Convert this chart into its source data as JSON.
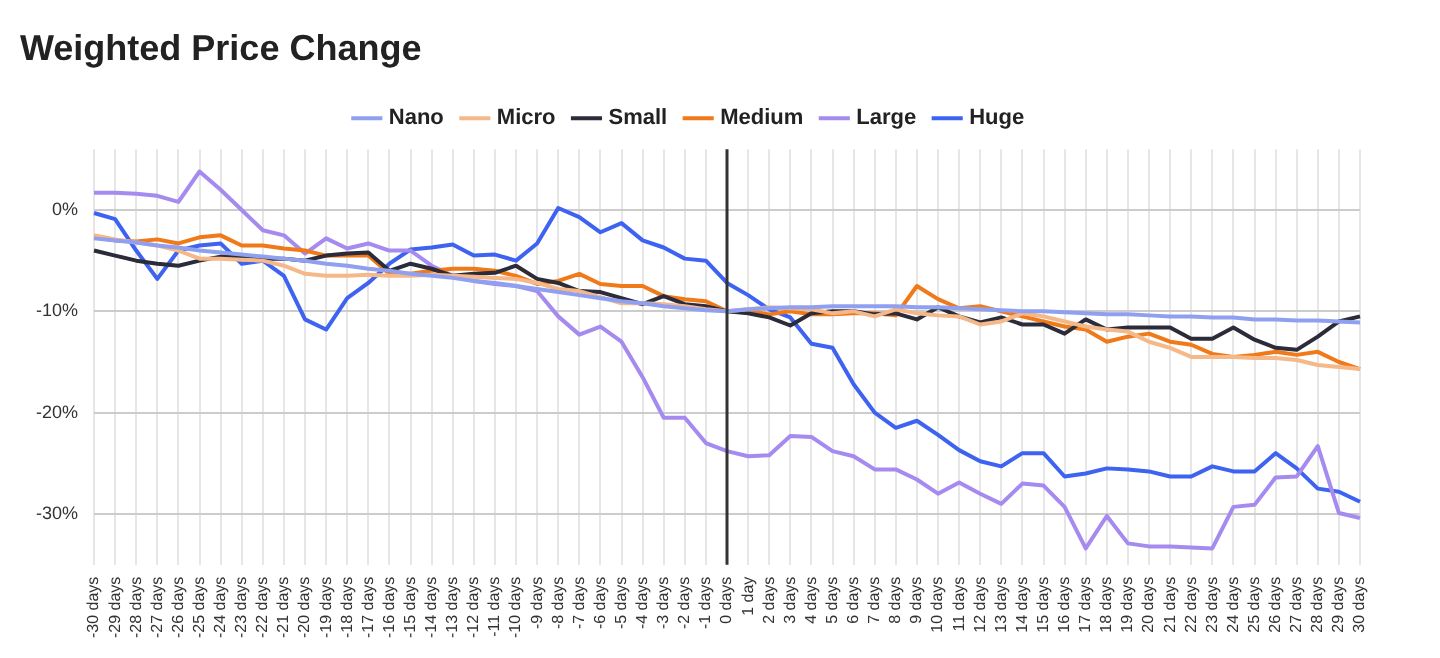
{
  "chart_data": {
    "type": "line",
    "title": "Weighted Price Change",
    "categories": [
      "-30 days",
      "-29 days",
      "-28 days",
      "-27 days",
      "-26 days",
      "-25 days",
      "-24 days",
      "-23 days",
      "-22 days",
      "-21 days",
      "-20 days",
      "-19 days",
      "-18 days",
      "-17 days",
      "-16 days",
      "-15 days",
      "-14 days",
      "-13 days",
      "-12 days",
      "-11 days",
      "-10 days",
      "-9 days",
      "-8 days",
      "-7 days",
      "-6 days",
      "-5 days",
      "-4 days",
      "-3 days",
      "-2 days",
      "-1 days",
      "0 days",
      "1 day",
      "2 days",
      "3 days",
      "4 days",
      "5 days",
      "6 days",
      "7 days",
      "8 days",
      "9 days",
      "10 days",
      "11 days",
      "12 days",
      "13 days",
      "14 days",
      "15 days",
      "16 days",
      "17 days",
      "18 days",
      "19 days",
      "20 days",
      "21 days",
      "22 days",
      "23 days",
      "24 days",
      "25 days",
      "26 days",
      "27 days",
      "28 days",
      "29 days",
      "30 days"
    ],
    "series": [
      {
        "name": "Nano",
        "color": "#8fa0f0",
        "values": [
          -2.8,
          -3,
          -3.2,
          -3.5,
          -3.7,
          -4,
          -4.2,
          -4.4,
          -4.6,
          -4.8,
          -5,
          -5.3,
          -5.5,
          -5.8,
          -6,
          -6.3,
          -6.5,
          -6.7,
          -7,
          -7.2,
          -7.5,
          -7.8,
          -8.1,
          -8.4,
          -8.7,
          -9,
          -9.2,
          -9.5,
          -9.7,
          -9.9,
          -10,
          -9.8,
          -9.7,
          -9.6,
          -9.6,
          -9.5,
          -9.5,
          -9.5,
          -9.5,
          -9.6,
          -9.6,
          -9.7,
          -9.8,
          -9.9,
          -10,
          -10,
          -10.1,
          -10.2,
          -10.3,
          -10.3,
          -10.4,
          -10.5,
          -10.5,
          -10.6,
          -10.6,
          -10.8,
          -10.8,
          -10.9,
          -10.9,
          -11,
          -11.1
        ]
      },
      {
        "name": "Micro",
        "color": "#f5b888",
        "values": [
          -2.5,
          -2.9,
          -3.2,
          -3.5,
          -4,
          -4.8,
          -4.8,
          -4.9,
          -5,
          -5.5,
          -6.3,
          -6.5,
          -6.5,
          -6.4,
          -6.5,
          -6.5,
          -6.4,
          -6.5,
          -6.6,
          -6.7,
          -6.8,
          -7.2,
          -7.8,
          -8,
          -8.6,
          -9.2,
          -9.2,
          -9.3,
          -9.5,
          -9.8,
          -10,
          -9.8,
          -9.6,
          -9.7,
          -9.8,
          -10.2,
          -10,
          -10.5,
          -9.8,
          -10.2,
          -10.4,
          -10.5,
          -11.3,
          -11,
          -10.2,
          -10.5,
          -11,
          -11.5,
          -11.8,
          -12,
          -13,
          -13.6,
          -14.5,
          -14.5,
          -14.5,
          -14.6,
          -14.6,
          -14.8,
          -15.3,
          -15.5,
          -15.7
        ]
      },
      {
        "name": "Small",
        "color": "#2b2b3a",
        "values": [
          -4,
          -4.5,
          -5,
          -5.3,
          -5.5,
          -5,
          -4.6,
          -4.6,
          -4.8,
          -4.8,
          -5,
          -4.5,
          -4.3,
          -4.2,
          -6,
          -5.3,
          -5.8,
          -6.5,
          -6.3,
          -6.2,
          -5.5,
          -6.8,
          -7.2,
          -8,
          -8.1,
          -8.7,
          -9.3,
          -8.5,
          -9.3,
          -9.5,
          -10,
          -10.2,
          -10.6,
          -11.4,
          -10.2,
          -10,
          -10,
          -10.3,
          -10.2,
          -10.8,
          -9.6,
          -10.5,
          -11.1,
          -10.6,
          -11.3,
          -11.3,
          -12.2,
          -10.8,
          -11.8,
          -11.6,
          -11.6,
          -11.6,
          -12.7,
          -12.7,
          -11.6,
          -12.8,
          -13.6,
          -13.8,
          -12.5,
          -11,
          -10.5
        ]
      },
      {
        "name": "Medium",
        "color": "#f07a1a",
        "values": [
          -2.7,
          -3,
          -3.1,
          -2.9,
          -3.3,
          -2.7,
          -2.5,
          -3.5,
          -3.5,
          -3.8,
          -4,
          -4.5,
          -4.5,
          -4.5,
          -6.3,
          -6.3,
          -6,
          -5.8,
          -5.8,
          -6,
          -6.5,
          -7.3,
          -7,
          -6.3,
          -7.3,
          -7.5,
          -7.5,
          -8.5,
          -8.8,
          -9,
          -10,
          -10,
          -10.3,
          -10,
          -10.3,
          -10.3,
          -10.2,
          -10.2,
          -10.4,
          -7.5,
          -8.8,
          -9.7,
          -9.5,
          -10,
          -10.5,
          -11,
          -11.5,
          -11.8,
          -13,
          -12.5,
          -12.2,
          -13,
          -13.3,
          -14.2,
          -14.5,
          -14.3,
          -14,
          -14.3,
          -14,
          -15,
          -15.7
        ]
      },
      {
        "name": "Large",
        "color": "#a58af0",
        "values": [
          1.7,
          1.7,
          1.6,
          1.4,
          0.8,
          3.8,
          2,
          0,
          -2,
          -2.5,
          -4.3,
          -2.8,
          -3.8,
          -3.3,
          -4,
          -4,
          -5.5,
          -6.5,
          -7,
          -7.3,
          -7.5,
          -8,
          -10.5,
          -12.3,
          -11.5,
          -13,
          -16.5,
          -20.5,
          -20.5,
          -23,
          -23.8,
          -24.3,
          -24.2,
          -22.3,
          -22.4,
          -23.8,
          -24.3,
          -25.6,
          -25.6,
          -26.6,
          -28,
          -26.9,
          -28,
          -29,
          -27,
          -27.2,
          -29.3,
          -33.4,
          -30.2,
          -32.9,
          -33.2,
          -33.2,
          -33.3,
          -33.4,
          -29.3,
          -29.1,
          -26.4,
          -26.3,
          -23.3,
          -29.9,
          -30.4
        ]
      },
      {
        "name": "Huge",
        "color": "#3e63f0",
        "values": [
          -0.3,
          -0.9,
          -4,
          -6.8,
          -4,
          -3.5,
          -3.3,
          -5.3,
          -5,
          -6.5,
          -10.8,
          -11.8,
          -8.7,
          -7.2,
          -5.3,
          -3.9,
          -3.7,
          -3.4,
          -4.5,
          -4.4,
          -5,
          -3.3,
          0.2,
          -0.7,
          -2.2,
          -1.3,
          -3,
          -3.7,
          -4.8,
          -5,
          -7.2,
          -8.4,
          -9.8,
          -10.6,
          -13.2,
          -13.6,
          -17.2,
          -20,
          -21.5,
          -20.8,
          -22.2,
          -23.7,
          -24.8,
          -25.3,
          -24,
          -24,
          -26.3,
          -26,
          -25.5,
          -25.6,
          -25.8,
          -26.3,
          -26.3,
          -25.3,
          -25.8,
          -25.8,
          -24,
          -25.5,
          -27.5,
          -27.8,
          -28.8
        ]
      }
    ],
    "ylim": [
      -35,
      6
    ],
    "yticks": [
      {
        "value": 0,
        "label": "0%"
      },
      {
        "value": -10,
        "label": "-10%"
      },
      {
        "value": -20,
        "label": "-20%"
      },
      {
        "value": -30,
        "label": "-30%"
      }
    ],
    "ref_lines": [
      {
        "axis": "x",
        "value": "0 days",
        "color": "#333333"
      }
    ],
    "grid": true,
    "legend": "top",
    "marker": "none",
    "line_style": "solid"
  }
}
